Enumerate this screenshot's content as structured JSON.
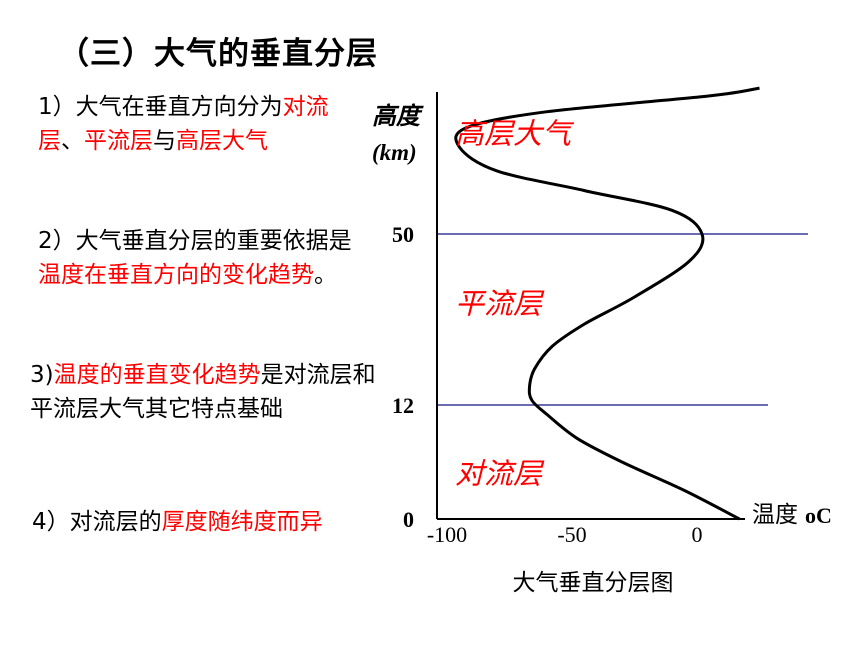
{
  "title": "（三）大气的垂直分层",
  "points": [
    {
      "segments": [
        {
          "text": "1）大气在垂直方向分为",
          "highlight": false
        },
        {
          "text": "对流层",
          "highlight": true
        },
        {
          "text": "、",
          "highlight": false
        },
        {
          "text": "平流层",
          "highlight": true
        },
        {
          "text": "与",
          "highlight": false
        },
        {
          "text": "高层大气",
          "highlight": true
        }
      ]
    },
    {
      "segments": [
        {
          "text": "2）大气垂直分层的重要依据是",
          "highlight": false
        },
        {
          "text": "温度在垂直方向的变化趋势",
          "highlight": true
        },
        {
          "text": "。",
          "highlight": false
        }
      ]
    },
    {
      "segments": [
        {
          "text": "3)",
          "highlight": false
        },
        {
          "text": "温度的垂直变化趋势",
          "highlight": true
        },
        {
          "text": "是对流层和平流层大气其它特点基础",
          "highlight": false
        }
      ]
    },
    {
      "segments": [
        {
          "text": "4）对流层的",
          "highlight": false
        },
        {
          "text": "厚度随纬度而异",
          "highlight": true
        }
      ]
    }
  ],
  "colors": {
    "text": "#000000",
    "highlight": "#ff0000",
    "boundary": "#3a3a9a",
    "curve": "#000000"
  },
  "chart_data": {
    "type": "line",
    "title": "大气垂直分层图",
    "ylabel": "高度",
    "ylabel_unit": "(km)",
    "xlabel": "温度",
    "xlabel_unit": "oC",
    "x_ticks": [
      -100,
      -50,
      0
    ],
    "y_ticks": [
      0,
      12,
      50
    ],
    "xlim": [
      -105,
      60
    ],
    "ylim": [
      0,
      68
    ],
    "boundaries": [
      12,
      50
    ],
    "layers": [
      {
        "name": "对流层",
        "altitude": 5
      },
      {
        "name": "平流层",
        "altitude": 35
      },
      {
        "name": "高层大气",
        "altitude": 63
      }
    ],
    "series": [
      {
        "x": [
          17,
          -5,
          -30,
          -48,
          -60,
          -66,
          -67,
          -65,
          -58,
          -45,
          -25,
          -3,
          2,
          -10,
          -45,
          -80,
          -95,
          -92,
          -60,
          5,
          25
        ],
        "y": [
          0,
          3,
          6,
          8.5,
          11,
          13,
          16,
          20,
          25,
          30,
          36,
          44,
          50,
          53,
          55.5,
          58,
          61,
          63.5,
          65.5,
          67.5,
          68.5
        ]
      }
    ]
  }
}
